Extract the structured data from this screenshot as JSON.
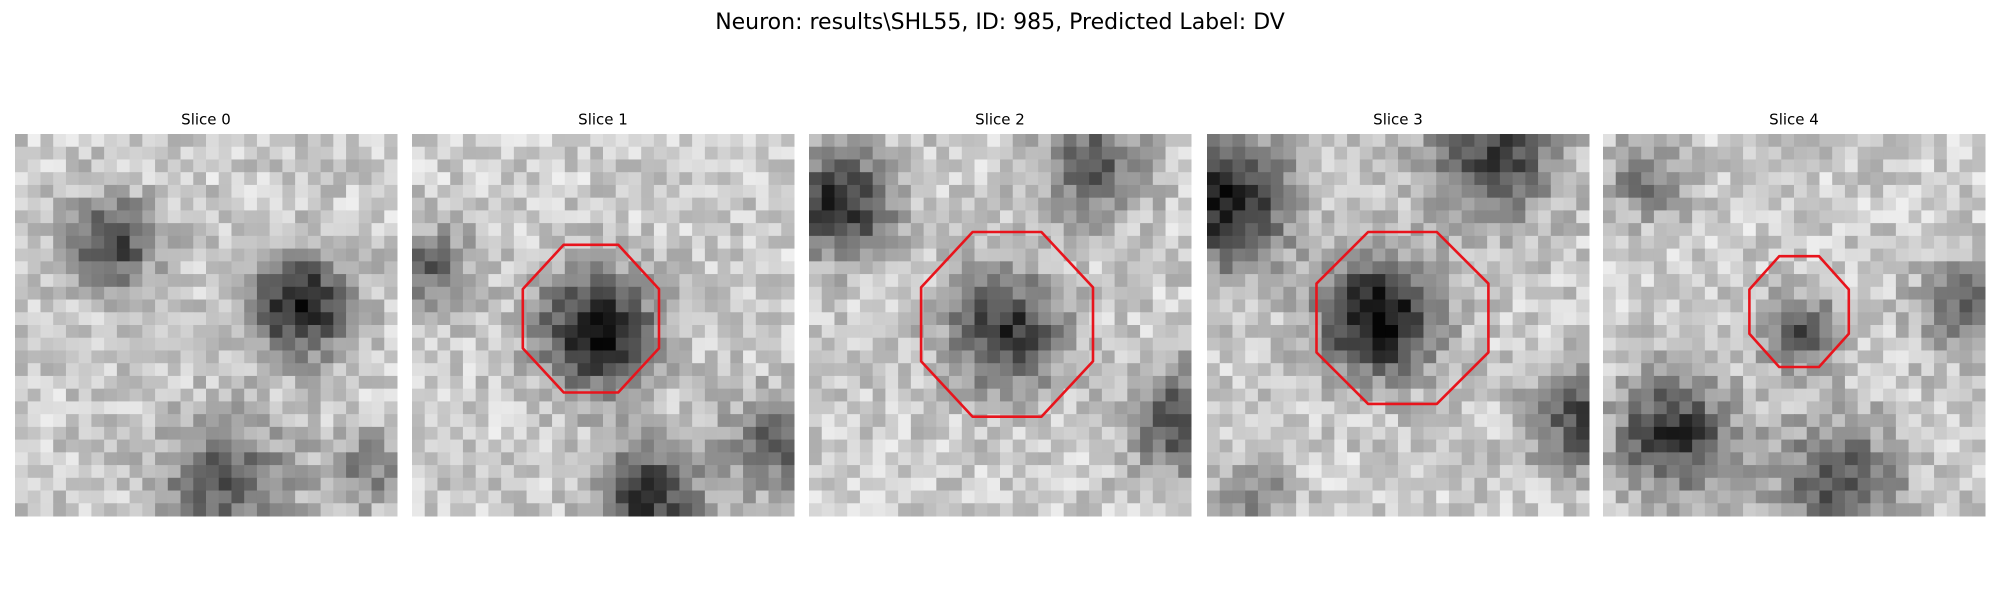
{
  "header": {
    "title": "Neuron: results\\SHL55, ID: 985, Predicted Label: DV"
  },
  "panels": [
    {
      "title": "Slice 0"
    },
    {
      "title": "Slice 1"
    },
    {
      "title": "Slice 2"
    },
    {
      "title": "Slice 3"
    },
    {
      "title": "Slice 4"
    }
  ]
}
